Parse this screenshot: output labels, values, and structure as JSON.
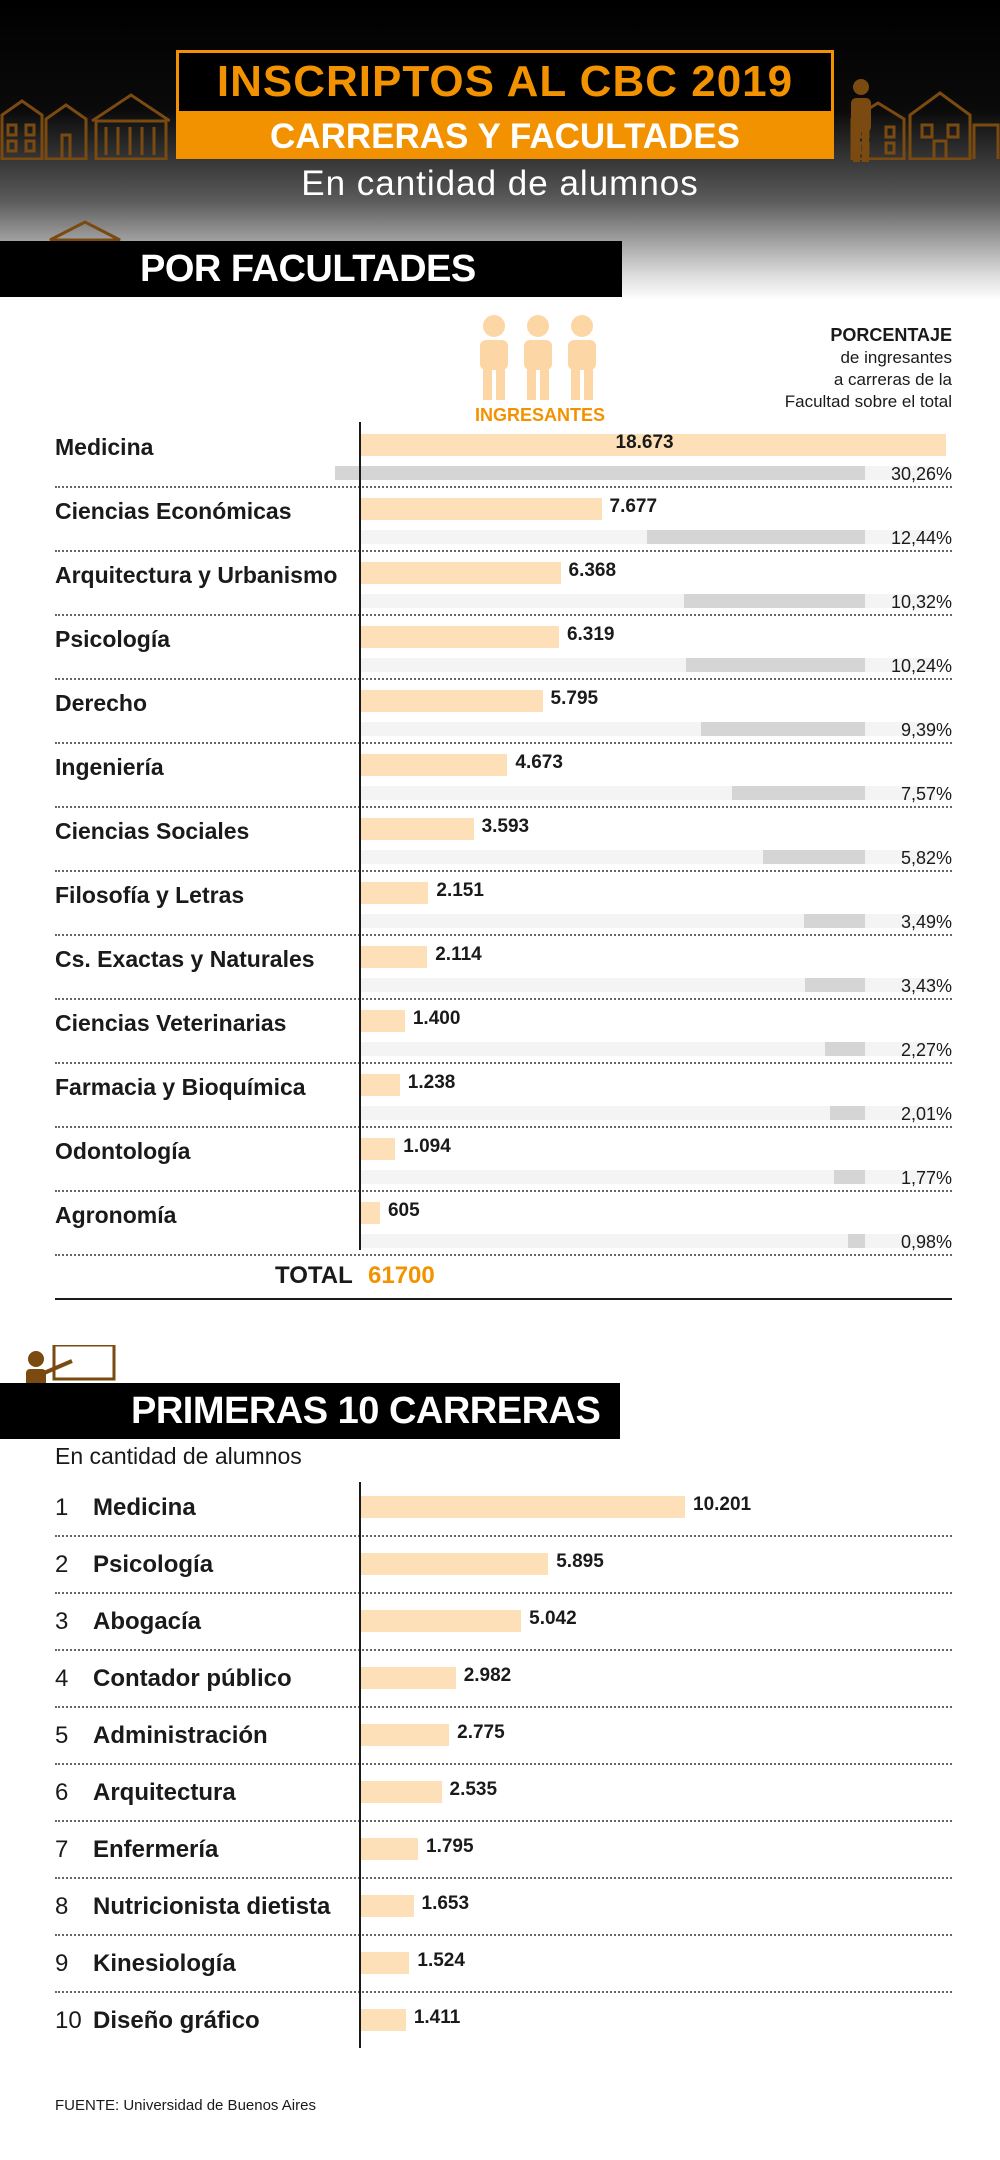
{
  "header": {
    "title": "INSCRIPTOS AL CBC 2019",
    "subtitle": "CARRERAS Y FACULTADES",
    "caption": "En cantidad de alumnos"
  },
  "section1": {
    "heading": "POR FACULTADES",
    "legend_bar": "INGRESANTES",
    "legend_pct_title": "PORCENTAJE",
    "legend_pct_line1": "de ingresantes",
    "legend_pct_line2": "a carreras de la",
    "legend_pct_line3": "Facultad sobre el total",
    "total_label": "TOTAL",
    "total_value": "61700"
  },
  "section2": {
    "heading": "PRIMERAS 10 CARRERAS",
    "caption": "En cantidad de alumnos"
  },
  "source": "FUENTE: Universidad de Buenos Aires",
  "colors": {
    "accent": "#f39200",
    "bar": "#fde0b8",
    "pct_bar": "#d5d5d5",
    "dark": "#000000"
  },
  "chart_data": [
    {
      "type": "bar",
      "title": "POR FACULTADES",
      "categories": [
        "Medicina",
        "Ciencias Económicas",
        "Arquitectura y Urbanismo",
        "Psicología",
        "Derecho",
        "Ingeniería",
        "Ciencias Sociales",
        "Filosofía y Letras",
        "Cs. Exactas y Naturales",
        "Ciencias Veterinarias",
        "Farmacia y Bioquímica",
        "Odontología",
        "Agronomía"
      ],
      "series": [
        {
          "name": "INGRESANTES",
          "values": [
            18673,
            7677,
            6368,
            6319,
            5795,
            4673,
            3593,
            2151,
            2114,
            1400,
            1238,
            1094,
            605
          ],
          "labels": [
            "18.673",
            "7.677",
            "6.368",
            "6.319",
            "5.795",
            "4.673",
            "3.593",
            "2.151",
            "2.114",
            "1.400",
            "1.238",
            "1.094",
            "605"
          ]
        },
        {
          "name": "PORCENTAJE",
          "values": [
            30.26,
            12.44,
            10.32,
            10.24,
            9.39,
            7.57,
            5.82,
            3.49,
            3.43,
            2.27,
            2.01,
            1.77,
            0.98
          ],
          "labels": [
            "30,26%",
            "12,44%",
            "10,32%",
            "10,24%",
            "9,39%",
            "7,57%",
            "5,82%",
            "3,49%",
            "3,43%",
            "2,27%",
            "2,01%",
            "1,77%",
            "0,98%"
          ]
        }
      ],
      "orientation": "horizontal",
      "xlim": [
        0,
        18673
      ],
      "grid": false
    },
    {
      "type": "bar",
      "title": "PRIMERAS 10 CARRERAS",
      "ranks": [
        "1",
        "2",
        "3",
        "4",
        "5",
        "6",
        "7",
        "8",
        "9",
        "10"
      ],
      "categories": [
        "Medicina",
        "Psicología",
        "Abogacía",
        "Contador público",
        "Administración",
        "Arquitectura",
        "Enfermería",
        "Nutricionista dietista",
        "Kinesiología",
        "Diseño gráfico"
      ],
      "values": [
        10201,
        5895,
        5042,
        2982,
        2775,
        2535,
        1795,
        1653,
        1524,
        1411
      ],
      "labels": [
        "10.201",
        "5.895",
        "5.042",
        "2.982",
        "2.775",
        "2.535",
        "1.795",
        "1.653",
        "1.524",
        "1.411"
      ],
      "orientation": "horizontal",
      "grid": false
    }
  ]
}
